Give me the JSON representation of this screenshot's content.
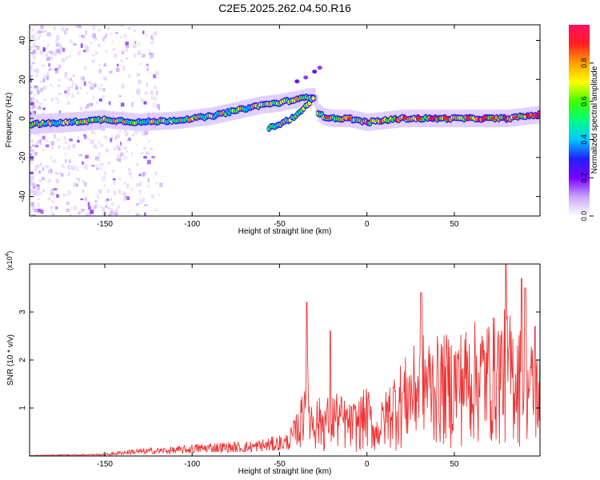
{
  "title": "C2E5.2025.262.04.50.R16",
  "colorbar": {
    "label": "Normalized spectral amplitude",
    "ticks": [
      0.0,
      0.2,
      0.4,
      0.6,
      0.8
    ],
    "tick_labels": [
      "0.0",
      "0.2",
      "0.4",
      "0.6",
      "0.8"
    ],
    "stops": [
      "#ffffff",
      "#c9a6ff",
      "#7a00ff",
      "#2020ff",
      "#00c8ff",
      "#00ff80",
      "#40ff00",
      "#ffff00",
      "#ffa000",
      "#ff2020",
      "#ff1060"
    ]
  },
  "chart_data": [
    {
      "type": "heatmap",
      "xlabel": "Height of straight line (km)",
      "ylabel": "Frequency (Hz)",
      "xlim": [
        -193,
        99
      ],
      "ylim": [
        -50,
        48
      ],
      "xticks": [
        -150,
        -100,
        -50,
        0,
        50
      ],
      "xtick_labels": [
        "-150",
        "-100",
        "-50",
        "0",
        "50"
      ],
      "yticks": [
        -40,
        -20,
        0,
        20,
        40
      ],
      "ytick_labels": [
        "-40",
        "-20",
        "0",
        "20",
        "40"
      ],
      "ridge_x": [
        -193,
        -170,
        -150,
        -130,
        -110,
        -90,
        -75,
        -60,
        -50,
        -45,
        -38,
        -34,
        -30,
        -28,
        -25,
        -20,
        -10,
        0,
        20,
        40,
        60,
        80,
        99
      ],
      "ridge_y": [
        -3,
        -2,
        -0.5,
        -2,
        -1,
        1,
        4,
        7,
        8,
        9,
        10,
        11,
        11,
        3,
        1,
        0,
        0,
        -2,
        0,
        0,
        0,
        0,
        2
      ],
      "branch_x": [
        -56,
        -50,
        -45,
        -40,
        -35,
        -32,
        -30
      ],
      "branch_y": [
        -5,
        -3,
        -1,
        2,
        6,
        9,
        11
      ],
      "spur_x": [
        -40,
        -35,
        -30,
        -27
      ],
      "spur_y": [
        19,
        21,
        24,
        26
      ]
    },
    {
      "type": "line",
      "xlabel": "Height of straight line (km)",
      "ylabel": "SNR (10 * v/v)",
      "multiplier": "(x10",
      "multiplier_exp": "4",
      "xlim": [
        -193,
        99
      ],
      "ylim": [
        0,
        4
      ],
      "xticks": [
        -150,
        -100,
        -50,
        0,
        50
      ],
      "xtick_labels": [
        "-150",
        "-100",
        "-50",
        "0",
        "50"
      ],
      "yticks": [
        1,
        2,
        3
      ],
      "ytick_labels": [
        "1",
        "2",
        "3"
      ],
      "color": "#ee3333",
      "envelope_x": [
        -193,
        -150,
        -135,
        -110,
        -90,
        -70,
        -55,
        -45,
        -38,
        -35,
        -32,
        -25,
        -18,
        -10,
        -5,
        0,
        5,
        15,
        25,
        32,
        40,
        50,
        60,
        70,
        80,
        90,
        99
      ],
      "envelope_y": [
        0.02,
        0.05,
        0.15,
        0.2,
        0.3,
        0.3,
        0.4,
        0.5,
        1.1,
        2.5,
        1.3,
        1.2,
        1.4,
        1.1,
        1.2,
        1.5,
        0.8,
        1.8,
        2.2,
        2.6,
        2.5,
        2.6,
        2.8,
        2.9,
        3.1,
        2.6,
        2.2
      ],
      "peaks": [
        {
          "x": -34.5,
          "y": 3.2
        },
        {
          "x": -21,
          "y": 2.6
        },
        {
          "x": 31,
          "y": 3.4
        },
        {
          "x": 79.5,
          "y": 4.0
        },
        {
          "x": 88.5,
          "y": 3.7
        },
        {
          "x": 90.5,
          "y": 3.5
        },
        {
          "x": 96,
          "y": 2.7
        }
      ]
    }
  ]
}
